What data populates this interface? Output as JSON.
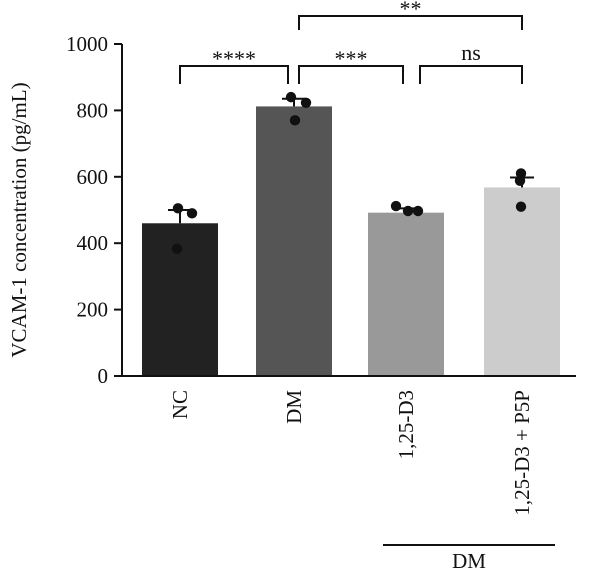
{
  "chart_data": {
    "type": "bar",
    "categories": [
      "NC",
      "DM",
      "1,25-D3",
      "1,25-D3 + P5P"
    ],
    "values": [
      460,
      812,
      492,
      568
    ],
    "error_upper": [
      500,
      835,
      505,
      598
    ],
    "points": [
      [
        505,
        490,
        383
      ],
      [
        840,
        823,
        770
      ],
      [
        512,
        497,
        497
      ],
      [
        610,
        588,
        510
      ]
    ],
    "bar_colors": [
      "#222222",
      "#555555",
      "#999999",
      "#cccccc"
    ],
    "ylabel": "VCAM-1 concentration (pg/mL)",
    "yticks": [
      0,
      200,
      400,
      600,
      800,
      1000
    ],
    "ylim": [
      0,
      1000
    ],
    "group_label": "DM",
    "comparisons": [
      {
        "from": 0,
        "to": 1,
        "label": "****"
      },
      {
        "from": 1,
        "to": 2,
        "label": "***"
      },
      {
        "from": 2,
        "to": 3,
        "label": "ns"
      },
      {
        "from": 1,
        "to": 3,
        "label": "**"
      }
    ]
  }
}
